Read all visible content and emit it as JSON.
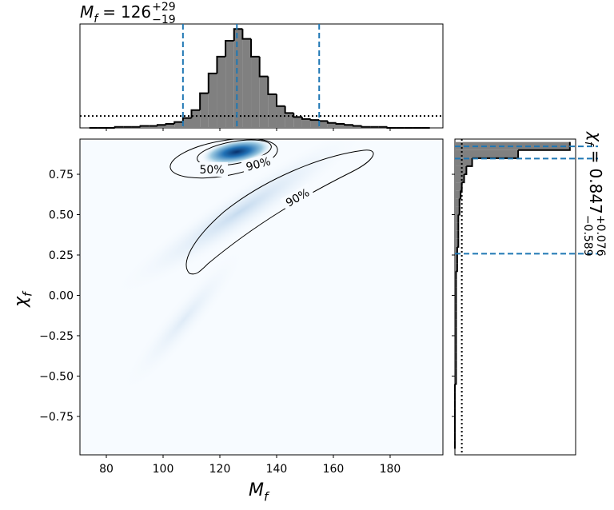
{
  "chart_data": {
    "type": "corner",
    "relation": "=",
    "x_param": {
      "symbol": "M",
      "sub": "f",
      "value": 126,
      "plus": {
        "value": 29,
        "label": "+29"
      },
      "minus": {
        "value": 19,
        "label": "−19"
      }
    },
    "y_param": {
      "symbol": "χ",
      "sub": "f",
      "value": 0.847,
      "plus": {
        "value": 0.076,
        "label": "+0.076"
      },
      "minus": {
        "value": 0.589,
        "label": "−0.589"
      }
    },
    "contour_labels": [
      "50%",
      "90%",
      "90%"
    ],
    "xlim": [
      70.7,
      198.6
    ],
    "xticks": [
      80,
      100,
      120,
      140,
      160,
      180
    ],
    "ylim": [
      -0.988,
      0.968
    ],
    "yticks": [
      {
        "value": -0.75,
        "label": "−0.75"
      },
      {
        "value": -0.5,
        "label": "−0.50"
      },
      {
        "value": -0.25,
        "label": "−0.25"
      },
      {
        "value": 0,
        "label": "0.00"
      },
      0.25,
      {
        "value": 0.5,
        "label": "0.50"
      },
      0.75
    ],
    "dash_color": "#1f77b4",
    "hist_color": "#808080",
    "x_hist": {
      "bins": [
        74,
        77,
        80,
        83,
        86,
        89,
        92,
        95,
        98,
        101,
        104,
        107,
        110,
        113,
        116,
        119,
        122,
        125,
        128,
        131,
        134,
        137,
        140,
        143,
        146,
        149,
        152,
        155,
        158,
        161,
        164,
        167,
        170,
        173,
        176,
        179,
        182,
        185,
        188,
        191,
        194
      ],
      "counts": [
        0,
        0,
        0,
        1,
        1,
        1,
        2,
        2,
        3,
        4,
        6,
        10,
        18,
        35,
        55,
        72,
        88,
        100,
        90,
        72,
        52,
        34,
        22,
        15,
        11,
        9,
        8,
        7,
        5,
        4,
        3,
        2,
        1,
        1,
        1,
        0,
        0,
        0,
        0,
        0
      ],
      "prior": 12,
      "lim": [
        0,
        105
      ]
    },
    "y_hist": {
      "bins": [
        -0.95,
        -0.9,
        -0.85,
        -0.8,
        -0.75,
        -0.7,
        -0.65,
        -0.6,
        -0.55,
        -0.5,
        -0.45,
        -0.4,
        -0.35,
        -0.3,
        -0.25,
        -0.2,
        -0.15,
        -0.1,
        -0.05,
        0,
        0.05,
        0.1,
        0.15,
        0.2,
        0.25,
        0.3,
        0.35,
        0.4,
        0.45,
        0.5,
        0.55,
        0.6,
        0.65,
        0.7,
        0.75,
        0.8,
        0.85,
        0.9,
        0.95
      ],
      "counts": [
        0,
        0,
        0,
        0,
        0,
        0,
        0,
        0,
        1,
        1,
        1,
        1,
        1,
        1,
        1,
        1,
        1,
        1,
        1,
        1,
        1,
        1,
        2,
        2,
        2,
        3,
        3,
        3,
        3,
        4,
        4,
        5,
        6,
        8,
        10,
        15,
        55,
        100
      ],
      "prior": 6,
      "lim": [
        0,
        105
      ]
    }
  }
}
